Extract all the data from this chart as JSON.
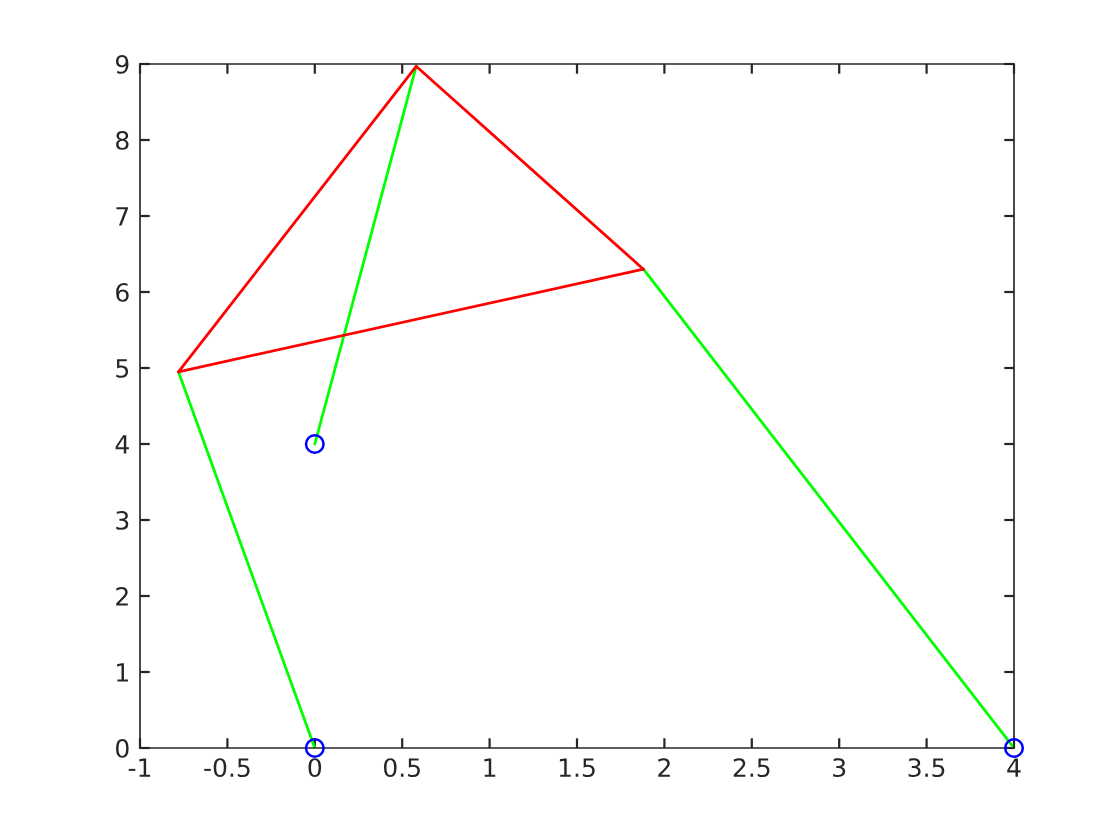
{
  "chart_data": {
    "type": "line",
    "series": [
      {
        "color": "#00ff00",
        "x": [
          0,
          -0.78
        ],
        "values": [
          0,
          4.95
        ]
      },
      {
        "color": "#00ff00",
        "x": [
          0,
          0.58
        ],
        "values": [
          4,
          8.97
        ]
      },
      {
        "color": "#00ff00",
        "x": [
          1.88,
          4
        ],
        "values": [
          6.3,
          0
        ]
      },
      {
        "color": "#ff0000",
        "x": [
          -0.78,
          0.58
        ],
        "values": [
          4.95,
          8.97
        ]
      },
      {
        "color": "#ff0000",
        "x": [
          0.58,
          1.88
        ],
        "values": [
          8.97,
          6.3
        ]
      },
      {
        "color": "#ff0000",
        "x": [
          -0.78,
          1.88
        ],
        "values": [
          4.95,
          6.3
        ]
      },
      {
        "type": "scatter",
        "color": "#0000ff",
        "marker": "circle",
        "x": [
          0,
          0,
          4
        ],
        "values": [
          0,
          4,
          0
        ]
      }
    ],
    "xlim": [
      -1,
      4
    ],
    "xticks": [
      -1,
      -0.5,
      0,
      0.5,
      1,
      1.5,
      2,
      2.5,
      3,
      3.5,
      4
    ],
    "ylim": [
      0,
      9
    ],
    "yticks": [
      0,
      1,
      2,
      3,
      4,
      5,
      6,
      7,
      8,
      9
    ],
    "grid": false
  }
}
